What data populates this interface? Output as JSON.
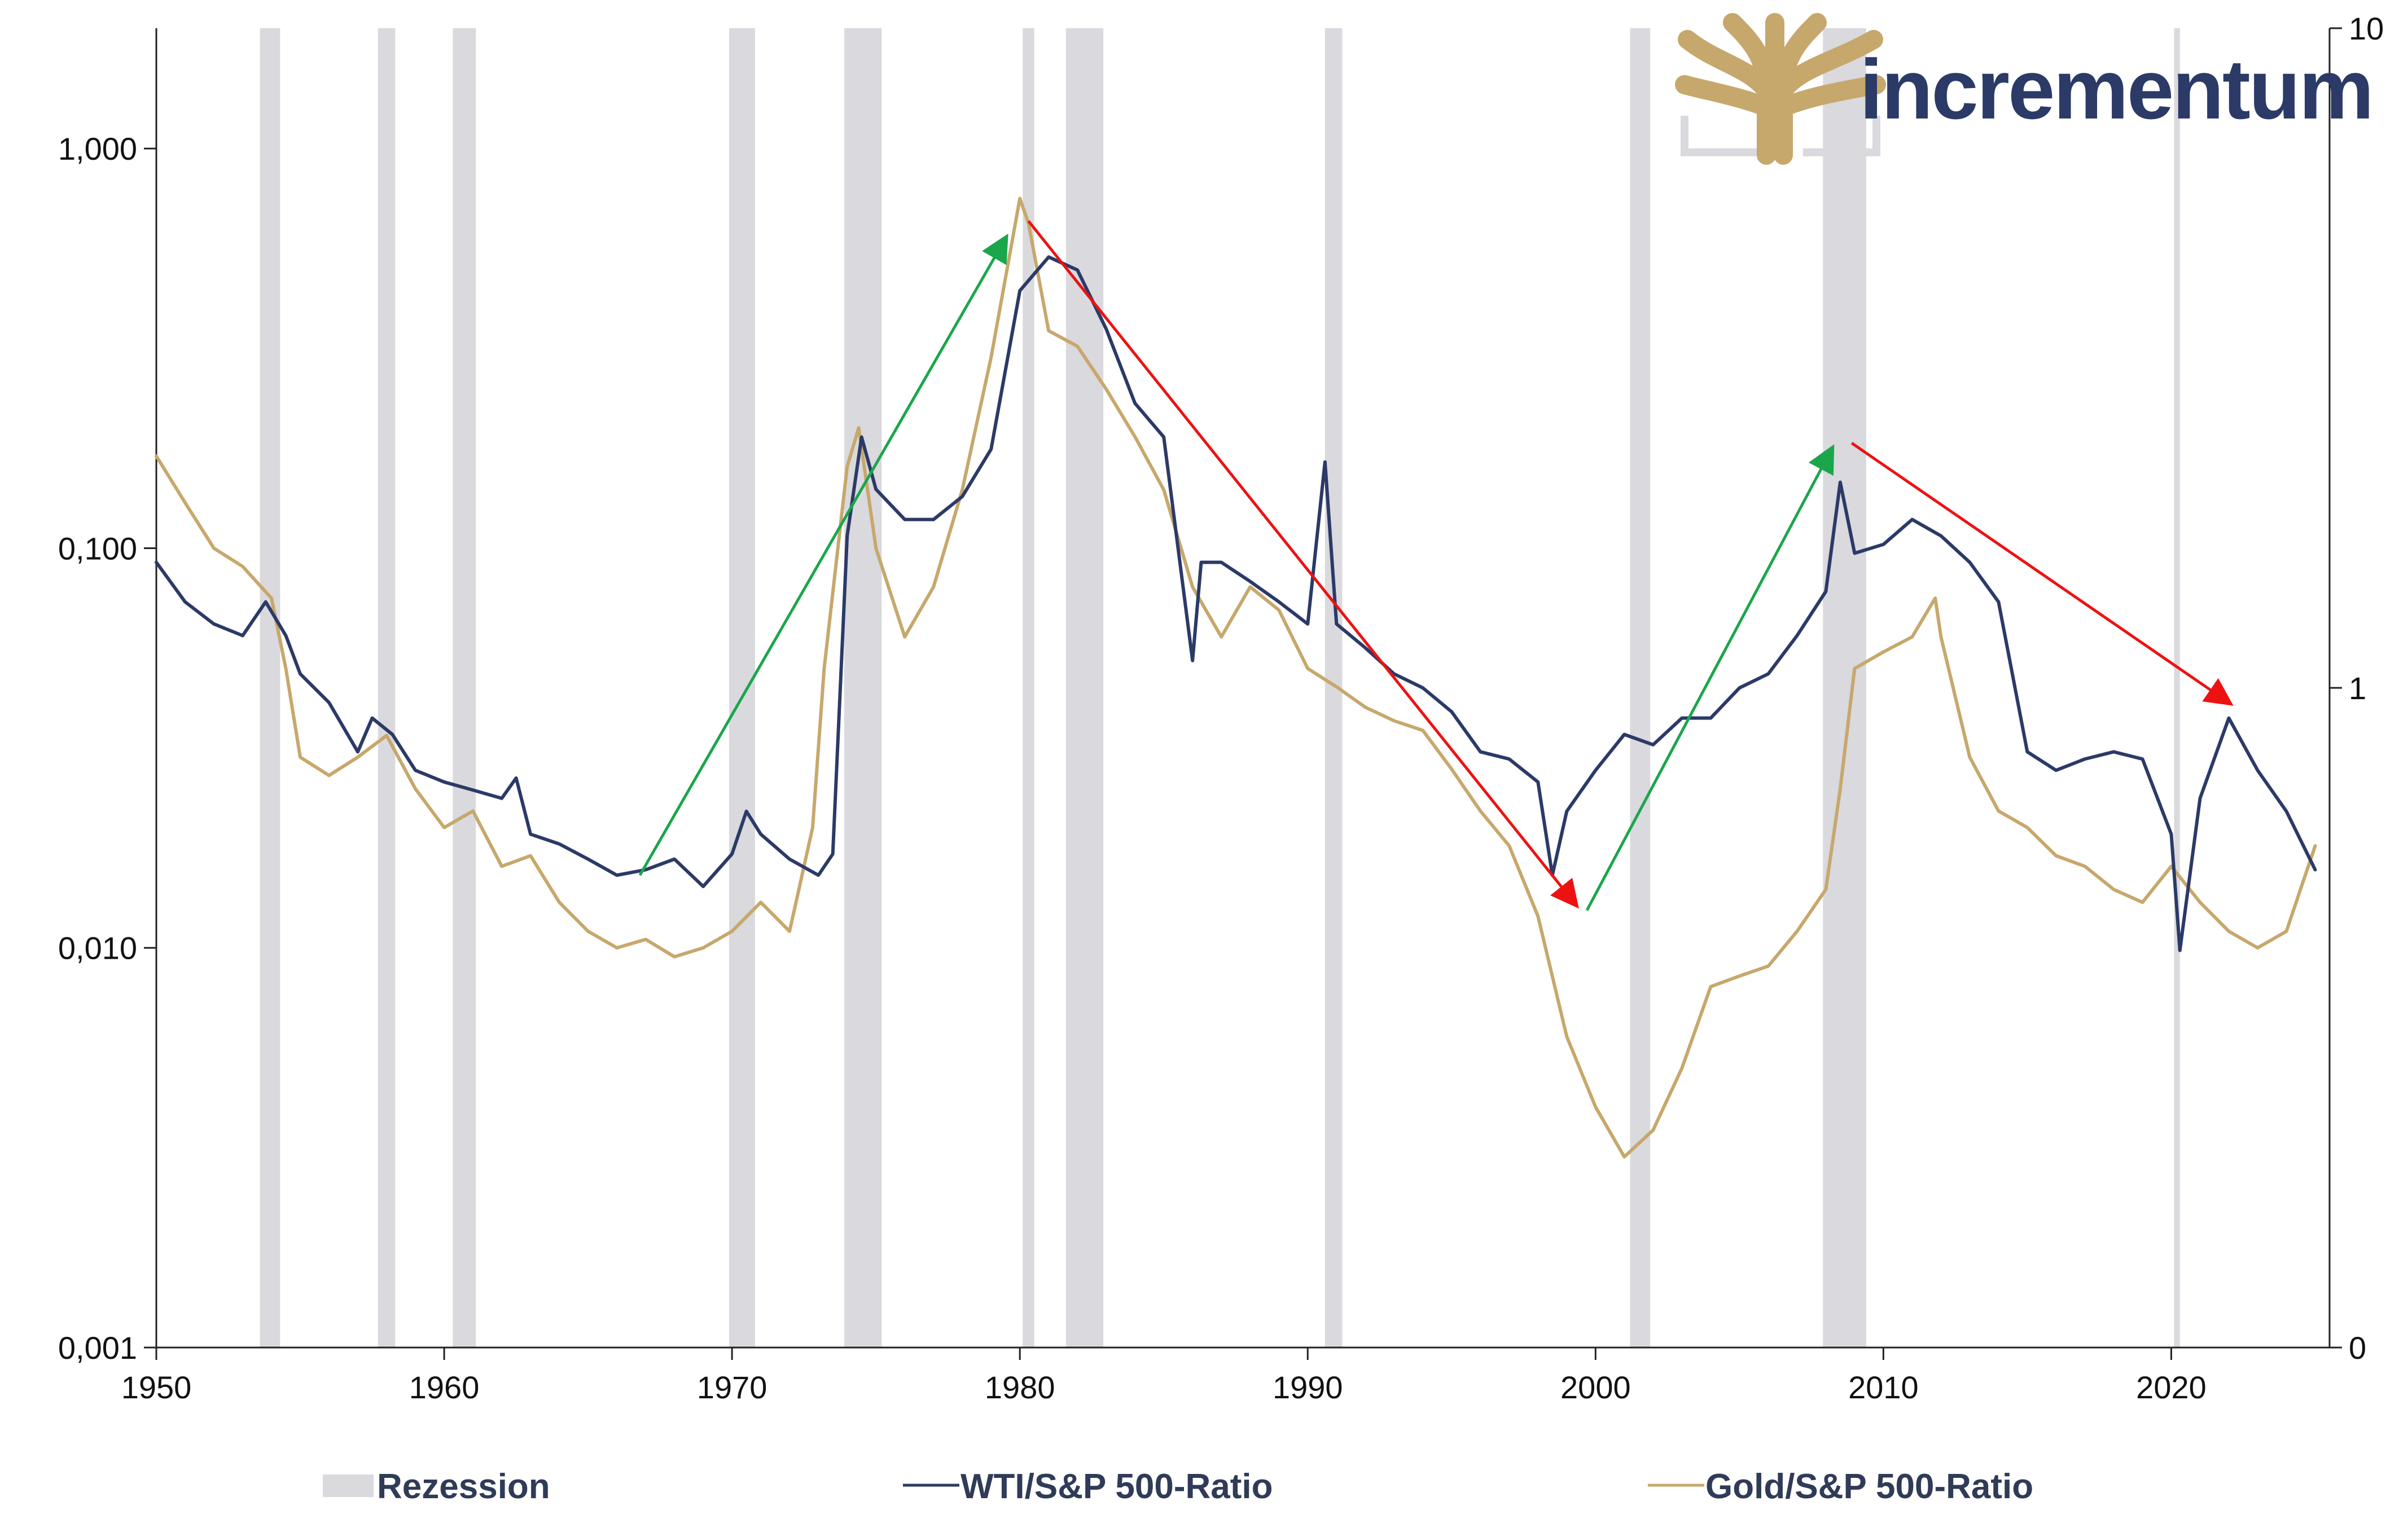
{
  "brand": {
    "logo_text": "incrementum",
    "logo_color": "#2b3a67",
    "tree_color": "#c7a86c",
    "frame_color": "#d9d9de"
  },
  "chart_data": {
    "type": "line",
    "title": "",
    "xlabel": "",
    "ylabel": "",
    "x_axis": {
      "range": [
        1950,
        2025.5
      ],
      "ticks": [
        1950,
        1960,
        1970,
        1980,
        1990,
        2000,
        2010,
        2020
      ],
      "tick_labels": [
        "1950",
        "1960",
        "1970",
        "1980",
        "1990",
        "2000",
        "2010",
        "2020"
      ]
    },
    "y_left": {
      "scale": "log",
      "range": [
        0.001,
        2.0
      ],
      "ticks": [
        0.001,
        0.01,
        0.1,
        1.0
      ],
      "tick_labels": [
        "0,001",
        "0,010",
        "0,100",
        "1,000"
      ]
    },
    "y_right": {
      "scale": "log",
      "range": [
        0.1,
        10
      ],
      "ticks": [
        0.1,
        1,
        10
      ],
      "tick_labels": [
        "0",
        "1",
        "10"
      ]
    },
    "grid": false,
    "legend_position": "bottom",
    "legend": [
      {
        "key": "recession",
        "label": "Rezession",
        "color": "#d9d9de"
      },
      {
        "key": "wti",
        "label": "WTI/S&P 500-Ratio",
        "color": "#2b3a67"
      },
      {
        "key": "gold",
        "label": "Gold/S&P 500-Ratio",
        "color": "#c7a86c"
      }
    ],
    "recessions": [
      [
        1953.6,
        1954.3
      ],
      [
        1957.7,
        1958.3
      ],
      [
        1960.3,
        1961.1
      ],
      [
        1969.9,
        1970.8
      ],
      [
        1973.9,
        1975.2
      ],
      [
        1980.1,
        1980.5
      ],
      [
        1981.6,
        1982.9
      ],
      [
        1990.6,
        1991.2
      ],
      [
        2001.2,
        2001.9
      ],
      [
        2007.9,
        2009.4
      ],
      [
        2020.1,
        2020.3
      ]
    ],
    "series": [
      {
        "key": "wti",
        "axis": "right",
        "x": [
          1950,
          1951,
          1952,
          1953,
          1953.8,
          1954.5,
          1955,
          1956,
          1957,
          1957.5,
          1958.2,
          1959,
          1960,
          1961,
          1962,
          1962.5,
          1963,
          1964,
          1965,
          1966,
          1967,
          1968,
          1969,
          1970,
          1970.5,
          1971,
          1972,
          1973,
          1973.5,
          1974,
          1974.5,
          1975,
          1976,
          1977,
          1978,
          1979,
          1980,
          1981,
          1982,
          1983,
          1984,
          1985,
          1986,
          1986.3,
          1987,
          1988,
          1989,
          1990,
          1990.6,
          1991,
          1992,
          1993,
          1994,
          1995,
          1996,
          1997,
          1998,
          1998.5,
          1999,
          2000,
          2001,
          2002,
          2003,
          2004,
          2005,
          2006,
          2007,
          2008,
          2008.5,
          2009,
          2010,
          2011,
          2012,
          2013,
          2014,
          2015,
          2016,
          2017,
          2018,
          2019,
          2020,
          2020.3,
          2021,
          2022,
          2023,
          2024,
          2025
        ],
        "y": [
          1.55,
          1.35,
          1.25,
          1.2,
          1.35,
          1.2,
          1.05,
          0.95,
          0.8,
          0.9,
          0.85,
          0.75,
          0.72,
          0.7,
          0.68,
          0.73,
          0.6,
          0.58,
          0.55,
          0.52,
          0.53,
          0.55,
          0.5,
          0.56,
          0.65,
          0.6,
          0.55,
          0.52,
          0.56,
          1.7,
          2.4,
          2.0,
          1.8,
          1.8,
          1.95,
          2.3,
          4.0,
          4.5,
          4.3,
          3.5,
          2.7,
          2.4,
          1.1,
          1.55,
          1.55,
          1.45,
          1.35,
          1.25,
          2.2,
          1.25,
          1.15,
          1.05,
          1.0,
          0.92,
          0.8,
          0.78,
          0.72,
          0.52,
          0.65,
          0.75,
          0.85,
          0.82,
          0.9,
          0.9,
          1.0,
          1.05,
          1.2,
          1.4,
          2.05,
          1.6,
          1.65,
          1.8,
          1.7,
          1.55,
          1.35,
          0.8,
          0.75,
          0.78,
          0.8,
          0.78,
          0.6,
          0.4,
          0.68,
          0.9,
          0.75,
          0.65,
          0.53
        ]
      },
      {
        "key": "gold",
        "axis": "left",
        "x": [
          1950,
          1951,
          1952,
          1953,
          1954,
          1954.5,
          1955,
          1956,
          1957,
          1958,
          1959,
          1960,
          1961,
          1962,
          1963,
          1964,
          1965,
          1966,
          1967,
          1968,
          1969,
          1970,
          1971,
          1972,
          1972.8,
          1973.2,
          1974,
          1974.4,
          1975,
          1976,
          1977,
          1978,
          1979,
          1980,
          1980.3,
          1981,
          1982,
          1983,
          1984,
          1985,
          1986,
          1987,
          1988,
          1989,
          1990,
          1991,
          1992,
          1993,
          1994,
          1995,
          1996,
          1997,
          1998,
          1999,
          2000,
          2001,
          2002,
          2003,
          2004,
          2005,
          2006,
          2007,
          2008,
          2008.5,
          2009,
          2010,
          2011,
          2011.8,
          2012,
          2013,
          2014,
          2015,
          2016,
          2017,
          2018,
          2019,
          2020,
          2021,
          2022,
          2023,
          2024,
          2025
        ],
        "y": [
          0.17,
          0.13,
          0.1,
          0.09,
          0.075,
          0.05,
          0.03,
          0.027,
          0.03,
          0.034,
          0.025,
          0.02,
          0.022,
          0.016,
          0.017,
          0.013,
          0.011,
          0.01,
          0.0105,
          0.0095,
          0.01,
          0.011,
          0.013,
          0.011,
          0.02,
          0.05,
          0.16,
          0.2,
          0.1,
          0.06,
          0.08,
          0.14,
          0.3,
          0.75,
          0.65,
          0.35,
          0.32,
          0.25,
          0.19,
          0.14,
          0.08,
          0.06,
          0.08,
          0.07,
          0.05,
          0.045,
          0.04,
          0.037,
          0.035,
          0.028,
          0.022,
          0.018,
          0.012,
          0.006,
          0.004,
          0.003,
          0.0035,
          0.005,
          0.008,
          0.0085,
          0.009,
          0.011,
          0.014,
          0.025,
          0.05,
          0.055,
          0.06,
          0.075,
          0.06,
          0.03,
          0.022,
          0.02,
          0.017,
          0.016,
          0.014,
          0.013,
          0.016,
          0.013,
          0.011,
          0.01,
          0.011,
          0.018
        ]
      }
    ],
    "annotations": [
      {
        "type": "arrow",
        "color": "#1aa64b",
        "from": [
          1966.8,
          0.52
        ],
        "to": [
          1979.5,
          4.8
        ]
      },
      {
        "type": "arrow",
        "color": "#ee1111",
        "from": [
          1980.3,
          5.1
        ],
        "to": [
          1999.3,
          0.47
        ]
      },
      {
        "type": "arrow",
        "color": "#1aa64b",
        "from": [
          1999.7,
          0.46
        ],
        "to": [
          2008.2,
          2.3
        ]
      },
      {
        "type": "arrow",
        "color": "#ee1111",
        "from": [
          2008.9,
          2.35
        ],
        "to": [
          2022.0,
          0.95
        ]
      }
    ]
  }
}
